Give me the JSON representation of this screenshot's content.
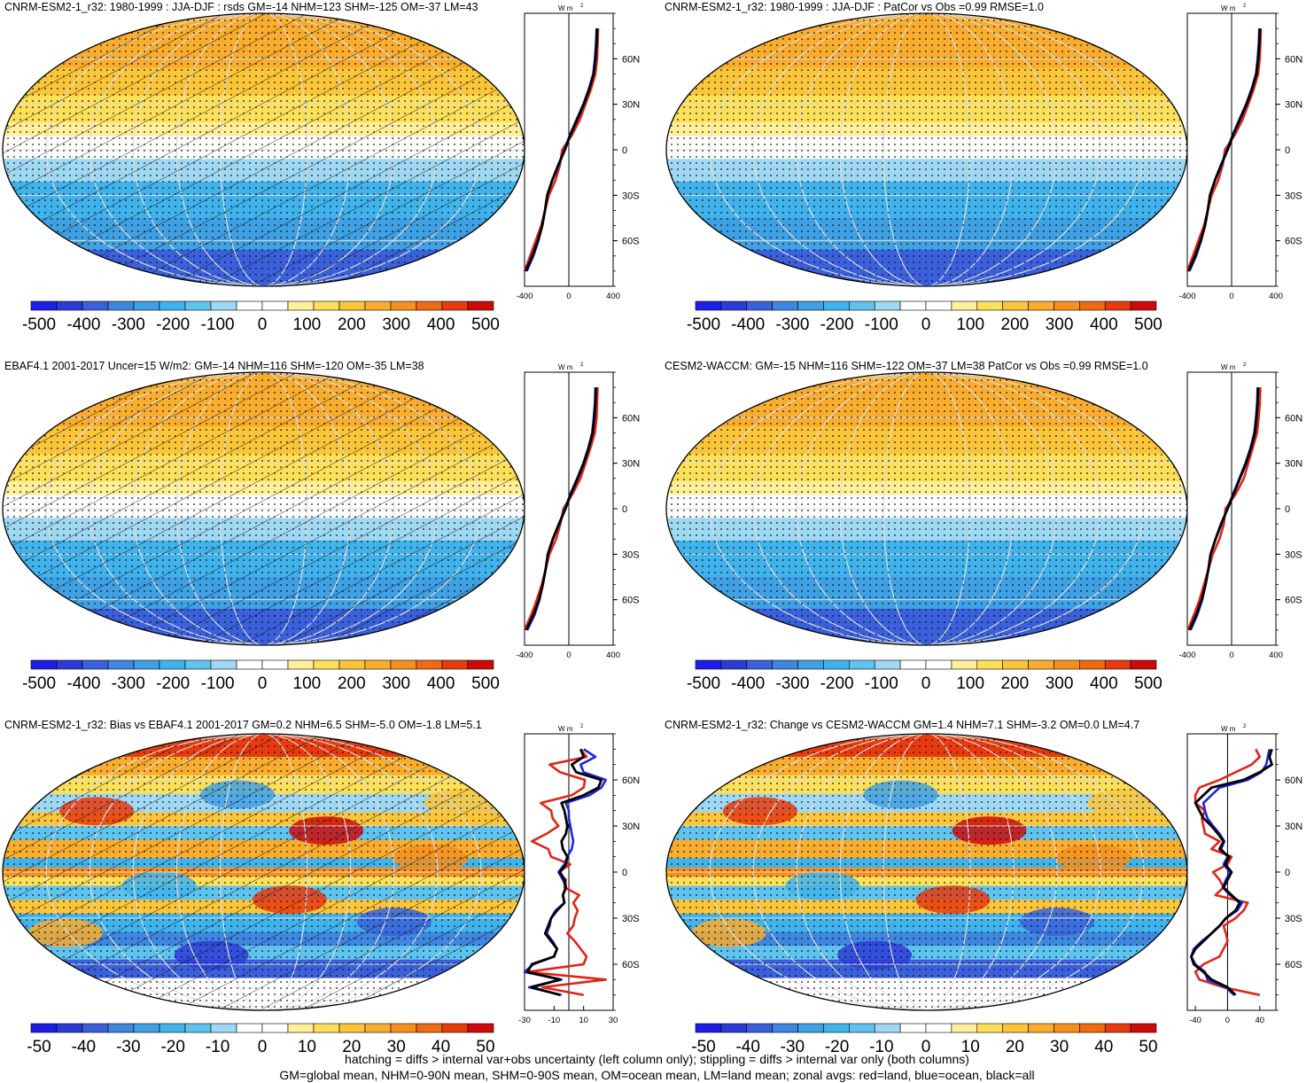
{
  "colors": {
    "palette": [
      "#1e1ee6",
      "#2b3bd8",
      "#3a60dc",
      "#3f86e0",
      "#3fa0e4",
      "#41b3ec",
      "#5ec4ef",
      "#9fd8f2",
      "#ffffff",
      "#ffffff",
      "#ffef9a",
      "#fde05a",
      "#fbc53a",
      "#f9ad2e",
      "#f58f1e",
      "#f06a12",
      "#e83a0d",
      "#cf0a0a"
    ],
    "land": "#e0251a",
    "ocean": "#1f24e0",
    "all": "#000000"
  },
  "legend_notes": [
    "hatching = diffs > internal var+obs uncertainty (left column only); stippling = diffs > internal var only (both columns)",
    "GM=global mean, NHM=0-90N mean, SHM=0-90S mean, OM=ocean mean, LM=land mean; zonal avgs: red=land, blue=ocean, black=all"
  ],
  "chart_data": [
    {
      "type": "heatmap",
      "title": "CNRM-ESM2-1_r32: 1980-1999 : JJA-DJF : rsds GM=-14 NHM=123 SHM=-125 OM=-37 LM=43",
      "hatching": true,
      "colorbar_ticks": [
        "-500",
        "-400",
        "-300",
        "-200",
        "-100",
        "0",
        "100",
        "200",
        "300",
        "400",
        "500"
      ],
      "zonal": {
        "unit_label": "W m",
        "xlim": [
          -400,
          400
        ],
        "xticks": [
          "-400",
          "0",
          "400"
        ],
        "lat_ticks": [
          "60N",
          "30N",
          "0",
          "30S",
          "60S"
        ],
        "lat": [
          -80,
          -70,
          -60,
          -50,
          -40,
          -30,
          -20,
          -10,
          0,
          10,
          20,
          30,
          40,
          50,
          60,
          70,
          80
        ],
        "all": [
          -390,
          -330,
          -280,
          -240,
          -215,
          -195,
          -150,
          -95,
          -35,
          15,
          75,
          135,
          185,
          225,
          240,
          250,
          255
        ],
        "ocean": [
          -380,
          -320,
          -275,
          -240,
          -215,
          -195,
          -150,
          -90,
          -40,
          10,
          70,
          130,
          180,
          220,
          235,
          245,
          250
        ],
        "land": [
          -400,
          -350,
          -300,
          -250,
          -215,
          -180,
          -120,
          -80,
          -60,
          30,
          100,
          150,
          200,
          240,
          255,
          260,
          265
        ]
      }
    },
    {
      "type": "heatmap",
      "title": "CNRM-ESM2-1_r32: 1980-1999 : JJA-DJF : PatCor vs Obs =0.99 RMSE=1.0",
      "hatching": false,
      "colorbar_ticks": [
        "-500",
        "-400",
        "-300",
        "-200",
        "-100",
        "0",
        "100",
        "200",
        "300",
        "400",
        "500"
      ],
      "zonal": {
        "unit_label": "W m",
        "xlim": [
          -400,
          400
        ],
        "xticks": [
          "-400",
          "0",
          "400"
        ],
        "lat_ticks": [
          "60N",
          "30N",
          "0",
          "30S",
          "60S"
        ],
        "lat": [
          -80,
          -70,
          -60,
          -50,
          -40,
          -30,
          -20,
          -10,
          0,
          10,
          20,
          30,
          40,
          50,
          60,
          70,
          80
        ],
        "all": [
          -390,
          -330,
          -280,
          -240,
          -215,
          -195,
          -150,
          -95,
          -35,
          15,
          75,
          135,
          185,
          225,
          240,
          250,
          255
        ],
        "ocean": [
          -380,
          -320,
          -275,
          -240,
          -215,
          -195,
          -150,
          -90,
          -40,
          10,
          70,
          130,
          180,
          220,
          235,
          245,
          250
        ],
        "land": [
          -400,
          -350,
          -300,
          -250,
          -215,
          -180,
          -120,
          -80,
          -60,
          30,
          100,
          150,
          200,
          240,
          255,
          260,
          265
        ]
      }
    },
    {
      "type": "heatmap",
      "title": "EBAF4.1 2001-2017 Uncer=15 W/m2: GM=-14 NHM=116 SHM=-120 OM=-35 LM=38",
      "hatching": true,
      "colorbar_ticks": [
        "-500",
        "-400",
        "-300",
        "-200",
        "-100",
        "0",
        "100",
        "200",
        "300",
        "400",
        "500"
      ],
      "zonal": {
        "unit_label": "W m",
        "xlim": [
          -400,
          400
        ],
        "xticks": [
          "-400",
          "0",
          "400"
        ],
        "lat_ticks": [
          "60N",
          "30N",
          "0",
          "30S",
          "60S"
        ],
        "lat": [
          -80,
          -70,
          -60,
          -50,
          -40,
          -30,
          -20,
          -10,
          0,
          10,
          20,
          30,
          40,
          50,
          60,
          70,
          80
        ],
        "all": [
          -385,
          -320,
          -270,
          -235,
          -210,
          -190,
          -145,
          -90,
          -30,
          20,
          80,
          135,
          180,
          215,
          230,
          240,
          245
        ],
        "ocean": [
          -375,
          -310,
          -265,
          -235,
          -210,
          -190,
          -145,
          -85,
          -35,
          15,
          75,
          130,
          175,
          210,
          225,
          235,
          240
        ],
        "land": [
          -400,
          -340,
          -290,
          -245,
          -210,
          -175,
          -115,
          -75,
          -50,
          35,
          105,
          150,
          195,
          235,
          250,
          255,
          260
        ]
      }
    },
    {
      "type": "heatmap",
      "title": "CESM2-WACCM: GM=-15 NHM=116 SHM=-122 OM=-37 LM=38 PatCor vs Obs =0.99 RMSE=1.0",
      "hatching": false,
      "colorbar_ticks": [
        "-500",
        "-400",
        "-300",
        "-200",
        "-100",
        "0",
        "100",
        "200",
        "300",
        "400",
        "500"
      ],
      "zonal": {
        "unit_label": "W m",
        "xlim": [
          -400,
          400
        ],
        "xticks": [
          "-400",
          "0",
          "400"
        ],
        "lat_ticks": [
          "60N",
          "30N",
          "0",
          "30S",
          "60S"
        ],
        "lat": [
          -80,
          -70,
          -60,
          -50,
          -40,
          -30,
          -20,
          -10,
          0,
          10,
          20,
          30,
          40,
          50,
          60,
          70,
          80
        ],
        "all": [
          -380,
          -320,
          -270,
          -235,
          -210,
          -190,
          -145,
          -95,
          -35,
          20,
          75,
          130,
          175,
          210,
          225,
          235,
          240
        ],
        "ocean": [
          -370,
          -310,
          -265,
          -235,
          -210,
          -190,
          -145,
          -90,
          -40,
          15,
          70,
          125,
          170,
          205,
          220,
          230,
          235
        ],
        "land": [
          -395,
          -340,
          -290,
          -250,
          -210,
          -170,
          -110,
          -70,
          -55,
          40,
          110,
          150,
          190,
          230,
          245,
          255,
          260
        ]
      }
    },
    {
      "type": "heatmap",
      "title": "CNRM-ESM2-1_r32: Bias vs EBAF4.1 2001-2017 GM=0.2 NHM=6.5 SHM=-5.0 OM=-1.8 LM=5.1",
      "hatching": true,
      "colorbar_ticks": [
        "-50",
        "-40",
        "-30",
        "-20",
        "-10",
        "0",
        "10",
        "20",
        "30",
        "40",
        "50"
      ],
      "zonal": {
        "unit_label": "W m",
        "xlim": [
          -30,
          30
        ],
        "xticks": [
          "-30",
          "-10",
          "10",
          "30"
        ],
        "lat_ticks": [
          "60N",
          "30N",
          "0",
          "30S",
          "60S"
        ],
        "lat": [
          -80,
          -75,
          -70,
          -65,
          -60,
          -55,
          -50,
          -45,
          -40,
          -35,
          -30,
          -25,
          -20,
          -15,
          -10,
          -5,
          0,
          5,
          10,
          15,
          20,
          25,
          30,
          35,
          40,
          45,
          50,
          55,
          60,
          65,
          70,
          75,
          80
        ],
        "all": [
          -6,
          -25,
          -6,
          -28,
          -25,
          -10,
          -8,
          -12,
          -16,
          -14,
          -12,
          -8,
          -3,
          -4,
          -2,
          -3,
          -6,
          -2,
          -1,
          -4,
          -5,
          -2,
          -1,
          -2,
          -3,
          -5,
          10,
          20,
          22,
          5,
          2,
          10,
          8
        ],
        "ocean": [
          -5,
          -27,
          -5,
          -30,
          -24,
          -10,
          -8,
          -11,
          -15,
          -13,
          -12,
          -9,
          -3,
          -4,
          -2,
          -4,
          -7,
          -3,
          -1,
          2,
          3,
          2,
          1,
          0,
          0,
          -2,
          14,
          22,
          25,
          10,
          8,
          18,
          10
        ],
        "land": [
          10,
          -18,
          25,
          -28,
          10,
          12,
          8,
          4,
          -1,
          3,
          4,
          6,
          3,
          7,
          -3,
          -2,
          -7,
          1,
          -12,
          -14,
          -25,
          -15,
          -7,
          -11,
          -12,
          -19,
          2,
          10,
          11,
          -6,
          -13,
          12,
          8
        ]
      }
    },
    {
      "type": "heatmap",
      "title": "CNRM-ESM2-1_r32: Change vs CESM2-WACCM GM=1.4 NHM=7.1 SHM=-3.2 OM=0.0 LM=4.7",
      "hatching": false,
      "colorbar_ticks": [
        "-50",
        "-40",
        "-30",
        "-20",
        "-10",
        "0",
        "10",
        "20",
        "30",
        "40",
        "50"
      ],
      "zonal": {
        "unit_label": "W m",
        "xlim": [
          -50,
          60
        ],
        "xticks": [
          "-40",
          "0",
          "40"
        ],
        "lat_ticks": [
          "60N",
          "30N",
          "0",
          "30S",
          "60S"
        ],
        "lat": [
          -80,
          -75,
          -70,
          -65,
          -60,
          -55,
          -50,
          -45,
          -40,
          -35,
          -30,
          -25,
          -20,
          -15,
          -10,
          -5,
          0,
          5,
          10,
          15,
          20,
          25,
          30,
          35,
          40,
          45,
          50,
          55,
          60,
          65,
          70,
          75,
          80
        ],
        "all": [
          10,
          0,
          -20,
          -30,
          -42,
          -45,
          -40,
          -30,
          -20,
          -10,
          -2,
          10,
          15,
          5,
          -5,
          0,
          5,
          -3,
          2,
          -10,
          -5,
          -12,
          -20,
          -30,
          -35,
          -40,
          -30,
          -20,
          20,
          40,
          55,
          52,
          55
        ],
        "ocean": [
          8,
          -2,
          -25,
          -28,
          -40,
          -45,
          -42,
          -32,
          -20,
          -10,
          -2,
          12,
          18,
          3,
          -6,
          -2,
          3,
          -5,
          0,
          -8,
          -4,
          -10,
          -18,
          -25,
          -28,
          -30,
          -20,
          -10,
          25,
          42,
          48,
          50,
          52
        ],
        "land": [
          40,
          -5,
          -35,
          -40,
          -30,
          -10,
          -5,
          0,
          -2,
          -5,
          10,
          20,
          25,
          -15,
          -5,
          -10,
          -18,
          0,
          5,
          -20,
          -10,
          -28,
          -30,
          -32,
          -28,
          -40,
          -40,
          -35,
          -10,
          10,
          30,
          40,
          35
        ]
      }
    }
  ]
}
